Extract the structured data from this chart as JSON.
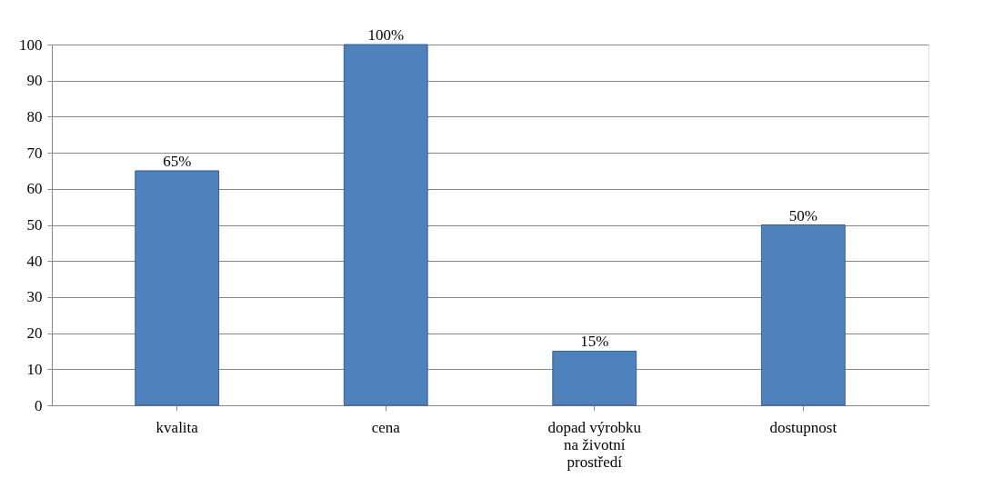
{
  "chart_data": {
    "type": "bar",
    "categories": [
      "kvalita",
      "cena",
      "dopad výrobku na životní prostředí",
      "dostupnost"
    ],
    "values": [
      65,
      100,
      15,
      50
    ],
    "value_labels": [
      "65%",
      "100%",
      "15%",
      "50%"
    ],
    "color": "#4f81bd",
    "ylim": [
      0,
      100
    ],
    "yticks": [
      0,
      10,
      20,
      30,
      40,
      50,
      60,
      70,
      80,
      90,
      100
    ],
    "grid": "y"
  }
}
